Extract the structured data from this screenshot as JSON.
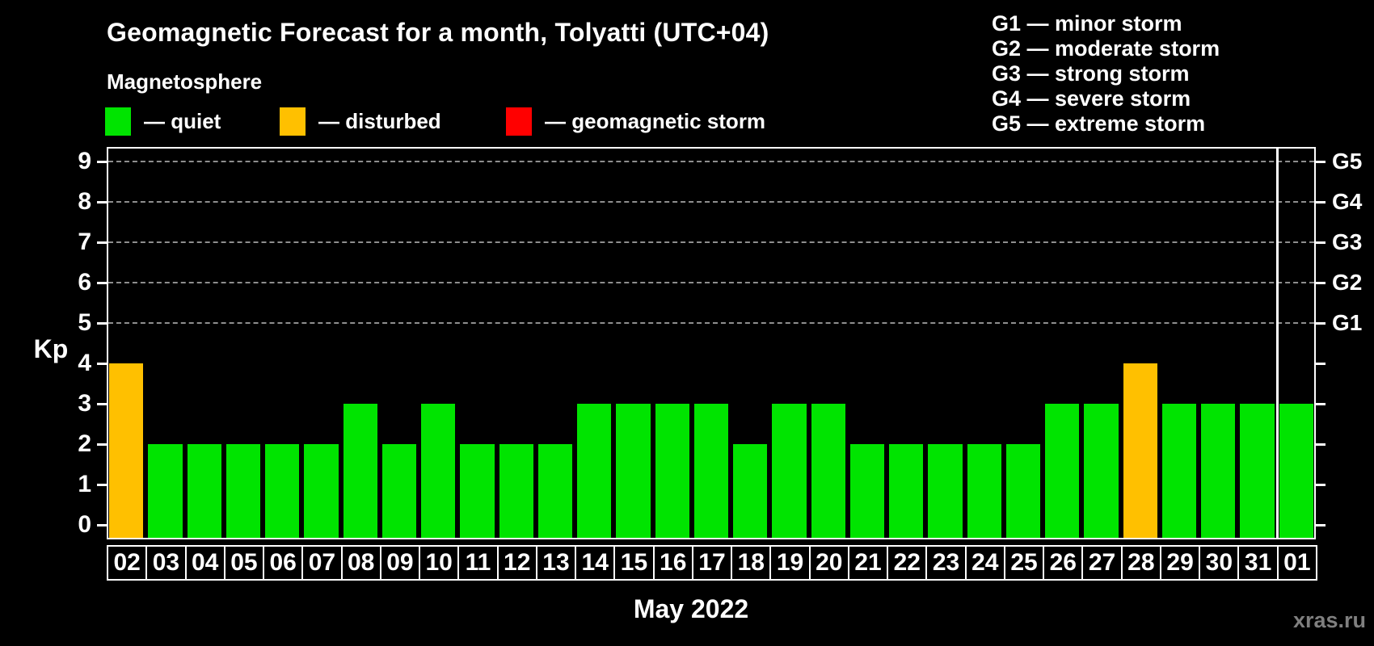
{
  "title": "Geomagnetic Forecast for a month, Tolyatti (UTC+04)",
  "subtitle": "Magnetosphere",
  "legend": {
    "items": [
      {
        "label": "— quiet",
        "status": "quiet",
        "color": "#00E400"
      },
      {
        "label": "— disturbed",
        "status": "disturbed",
        "color": "#FFC000"
      },
      {
        "label": "— geomagnetic storm",
        "status": "storm",
        "color": "#FF0000"
      }
    ]
  },
  "storm_scale": [
    "G1 — minor storm",
    "G2 — moderate storm",
    "G3 — strong storm",
    "G4 — severe storm",
    "G5 — extreme storm"
  ],
  "axis": {
    "y_label": "Kp",
    "x_label": "May 2022"
  },
  "watermark": "xras.ru",
  "chart_data": {
    "type": "bar",
    "title": "Geomagnetic Forecast for a month, Tolyatti (UTC+04)",
    "xlabel": "May 2022",
    "ylabel": "Kp",
    "ylim": [
      0,
      9
    ],
    "grid": true,
    "gridlines_at_kp": [
      5,
      6,
      7,
      8,
      9
    ],
    "legend_position": "top-left",
    "categories": [
      "02",
      "03",
      "04",
      "05",
      "06",
      "07",
      "08",
      "09",
      "10",
      "11",
      "12",
      "13",
      "14",
      "15",
      "16",
      "17",
      "18",
      "19",
      "20",
      "21",
      "22",
      "23",
      "24",
      "25",
      "26",
      "27",
      "28",
      "29",
      "30",
      "31",
      "01"
    ],
    "values": [
      4,
      2,
      2,
      2,
      2,
      2,
      3,
      2,
      3,
      2,
      2,
      2,
      3,
      3,
      3,
      3,
      2,
      3,
      3,
      2,
      2,
      2,
      2,
      2,
      3,
      3,
      4,
      3,
      3,
      3,
      3
    ],
    "statuses": [
      "disturbed",
      "quiet",
      "quiet",
      "quiet",
      "quiet",
      "quiet",
      "quiet",
      "quiet",
      "quiet",
      "quiet",
      "quiet",
      "quiet",
      "quiet",
      "quiet",
      "quiet",
      "quiet",
      "quiet",
      "quiet",
      "quiet",
      "quiet",
      "quiet",
      "quiet",
      "quiet",
      "quiet",
      "quiet",
      "quiet",
      "disturbed",
      "quiet",
      "quiet",
      "quiet",
      "quiet"
    ],
    "status_colors": {
      "quiet": "#00E400",
      "disturbed": "#FFC000",
      "storm": "#FF0000"
    },
    "y_ticks": [
      0,
      1,
      2,
      3,
      4,
      5,
      6,
      7,
      8,
      9
    ],
    "right_axis_labels": [
      {
        "kp": 5,
        "label": "G1"
      },
      {
        "kp": 6,
        "label": "G2"
      },
      {
        "kp": 7,
        "label": "G3"
      },
      {
        "kp": 8,
        "label": "G4"
      },
      {
        "kp": 9,
        "label": "G5"
      }
    ],
    "month_separator_after_index": 29
  }
}
